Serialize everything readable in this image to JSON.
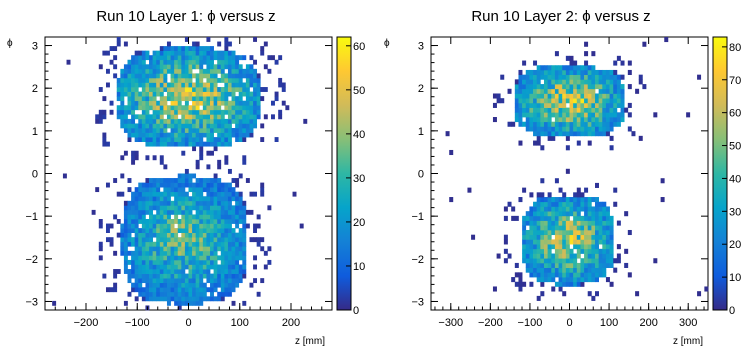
{
  "chart_data": [
    {
      "type": "heatmap",
      "title": "Run 10 Layer 1: ϕ versus z",
      "xlabel": "z [mm]",
      "ylabel": "ϕ",
      "xlim": [
        -280,
        280
      ],
      "ylim": [
        -3.2,
        3.2
      ],
      "xticks": [
        -200,
        -100,
        0,
        100,
        200
      ],
      "yticks": [
        -3,
        -2,
        -1,
        0,
        1,
        2,
        3
      ],
      "zlim": [
        0,
        62
      ],
      "zticks": [
        0,
        10,
        20,
        30,
        40,
        50,
        60
      ],
      "colormap": "viridis",
      "grid": false,
      "clusters": [
        {
          "z_range": [
            -140,
            140
          ],
          "phi_range": [
            0.6,
            2.95
          ],
          "peak_count": 58
        },
        {
          "z_range": [
            -130,
            115
          ],
          "phi_range": [
            -3.05,
            -0.05
          ],
          "peak_count": 45
        }
      ]
    },
    {
      "type": "heatmap",
      "title": "Run 10 Layer 2: ϕ versus z",
      "xlabel": "z [mm]",
      "ylabel": "ϕ",
      "xlim": [
        -350,
        350
      ],
      "ylim": [
        -3.2,
        3.2
      ],
      "xticks": [
        -300,
        -200,
        -100,
        0,
        100,
        200,
        300
      ],
      "yticks": [
        -3,
        -2,
        -1,
        0,
        1,
        2,
        3
      ],
      "zlim": [
        0,
        83
      ],
      "zticks": [
        0,
        10,
        20,
        30,
        40,
        50,
        60,
        70,
        80
      ],
      "colormap": "viridis",
      "grid": false,
      "clusters": [
        {
          "z_range": [
            -140,
            140
          ],
          "phi_range": [
            0.85,
            2.55
          ],
          "peak_count": 80
        },
        {
          "z_range": [
            -120,
            115
          ],
          "phi_range": [
            -2.6,
            -0.5
          ],
          "peak_count": 75
        }
      ]
    }
  ],
  "colors": {
    "viridis": [
      "#352a87",
      "#0f5cdd",
      "#1481d6",
      "#06a4ca",
      "#2eb7a4",
      "#87bf77",
      "#d1bb59",
      "#fec832",
      "#f9fb0e"
    ]
  }
}
